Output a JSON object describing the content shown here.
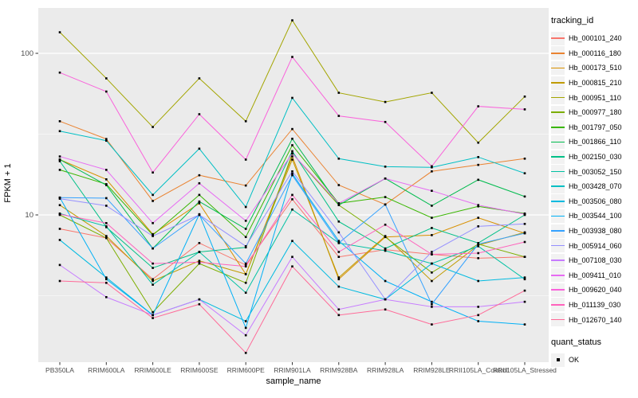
{
  "chart_data": {
    "type": "line",
    "title": "",
    "xlabel": "sample_name",
    "ylabel": "FPKM + 1",
    "y_scale": "log10",
    "y_tick_labels": [
      "100",
      "10"
    ],
    "y_ticks": [
      100,
      10
    ],
    "y_minor_gridlines": [
      31.623,
      3.162
    ],
    "ylim": [
      1.2,
      190
    ],
    "panel_bg": "#EBEBEB",
    "grid_color": "#FFFFFF",
    "tick_text_color": "#4D4D4D",
    "tick_mark_color": "#333333",
    "point_marker": "small-black-square",
    "categories": [
      "PB350LA",
      "RRIM600LA",
      "RRIM600LE",
      "RRIM600SE",
      "RRIM600PE",
      "RRIM901LA",
      "RRIM928BA",
      "RRIM928LA",
      "RRIM928LE",
      "RRII105LA_Control",
      "RRII105LA_Stressed"
    ],
    "legend": {
      "title": "tracking_id",
      "position": "right"
    },
    "quant_legend": {
      "title": "quant_status",
      "items": [
        {
          "label": "OK",
          "marker": "black-square"
        }
      ]
    },
    "series": [
      {
        "name": "Hb_000101_240",
        "color": "#F8766D",
        "values": [
          8.2,
          7.2,
          4.0,
          6.7,
          4.9,
          12.5,
          5.5,
          6.1,
          5.7,
          5.4,
          5.5
        ]
      },
      {
        "name": "Hb_000116_180",
        "color": "#EA8331",
        "values": [
          38,
          29.5,
          12.2,
          17.6,
          15.2,
          34,
          15.3,
          11.6,
          18.6,
          20.4,
          22.3
        ]
      },
      {
        "name": "Hb_000173_510",
        "color": "#D89000",
        "values": [
          22,
          16.6,
          7.6,
          11.8,
          4.3,
          23,
          4.0,
          7.3,
          7.5,
          9.6,
          7.7
        ]
      },
      {
        "name": "Hb_000815_210",
        "color": "#C09B00",
        "values": [
          11.5,
          7.4,
          3.9,
          5.2,
          4.3,
          22,
          4.1,
          7.4,
          3.9,
          6.5,
          7.8
        ]
      },
      {
        "name": "Hb_000951_110",
        "color": "#A3A500",
        "values": [
          135,
          70,
          35,
          70,
          38,
          160,
          57,
          50,
          57,
          28,
          54
        ]
      },
      {
        "name": "Hb_000977_180",
        "color": "#7CAE00",
        "values": [
          10,
          7.2,
          2.5,
          5.0,
          3.8,
          24,
          11.5,
          7.3,
          4.4,
          6.6,
          5.5
        ]
      },
      {
        "name": "Hb_001797_050",
        "color": "#39B600",
        "values": [
          19,
          15.5,
          7.5,
          13.3,
          7.3,
          27,
          11.8,
          12.9,
          9.6,
          11.3,
          10.2
        ]
      },
      {
        "name": "Hb_001866_110",
        "color": "#00BB4E",
        "values": [
          22,
          15.3,
          6.2,
          12.1,
          8.2,
          29.6,
          11.5,
          16.8,
          11.4,
          16.5,
          13.0
        ]
      },
      {
        "name": "Hb_002150_030",
        "color": "#00C087",
        "values": [
          21.5,
          8.4,
          4.7,
          5.9,
          6.3,
          24.8,
          9.1,
          6.2,
          8.3,
          6.7,
          10.0
        ]
      },
      {
        "name": "Hb_003052_150",
        "color": "#00C1A3",
        "values": [
          10.2,
          8.5,
          3.7,
          5.9,
          3.3,
          10.8,
          6.7,
          6.0,
          5.0,
          6.4,
          4.0
        ]
      },
      {
        "name": "Hb_003428_070",
        "color": "#00BFC4",
        "values": [
          33,
          28.8,
          13.3,
          25.7,
          11.2,
          53,
          22.3,
          19.9,
          19.7,
          22.8,
          18.1
        ]
      },
      {
        "name": "Hb_003506_080",
        "color": "#00BAE0",
        "values": [
          7.0,
          4.1,
          2.4,
          3.0,
          2.2,
          6.9,
          3.6,
          3.0,
          5.0,
          3.9,
          4.1
        ]
      },
      {
        "name": "Hb_003544_100",
        "color": "#00B0F6",
        "values": [
          12.8,
          4.0,
          2.4,
          10.1,
          2.0,
          18.0,
          6.9,
          3.9,
          2.9,
          2.2,
          2.1
        ]
      },
      {
        "name": "Hb_003938_080",
        "color": "#35A2FF",
        "values": [
          12.8,
          12.7,
          6.2,
          10.0,
          5.0,
          17.6,
          6.7,
          11.6,
          2.8,
          6.6,
          7.7
        ]
      },
      {
        "name": "Hb_005914_060",
        "color": "#9590FF",
        "values": [
          12.6,
          11.4,
          7.4,
          10.0,
          6.4,
          18.6,
          7.8,
          3.0,
          5.9,
          8.5,
          8.8
        ]
      },
      {
        "name": "Hb_007108_030",
        "color": "#C77CFF",
        "values": [
          4.9,
          3.1,
          2.4,
          3.0,
          1.8,
          5.5,
          2.6,
          3.0,
          2.7,
          2.7,
          2.9
        ]
      },
      {
        "name": "Hb_009411_010",
        "color": "#E76BF3",
        "values": [
          23,
          19.0,
          8.9,
          15.7,
          9.2,
          24,
          11.8,
          16.8,
          14.1,
          11.5,
          10.1
        ]
      },
      {
        "name": "Hb_009620_040",
        "color": "#FA62DB",
        "values": [
          76,
          58,
          18.3,
          42,
          22,
          95,
          41,
          37.6,
          20,
          47,
          45
        ]
      },
      {
        "name": "Hb_011139_030",
        "color": "#FF62BC",
        "values": [
          10.1,
          8.9,
          5.0,
          5.1,
          4.8,
          13.3,
          5.9,
          8.7,
          5.7,
          5.8,
          6.8
        ]
      },
      {
        "name": "Hb_012670_140",
        "color": "#FF6A98",
        "values": [
          3.9,
          3.8,
          2.3,
          2.8,
          1.4,
          4.8,
          2.4,
          2.6,
          2.1,
          2.4,
          3.4
        ]
      }
    ]
  }
}
